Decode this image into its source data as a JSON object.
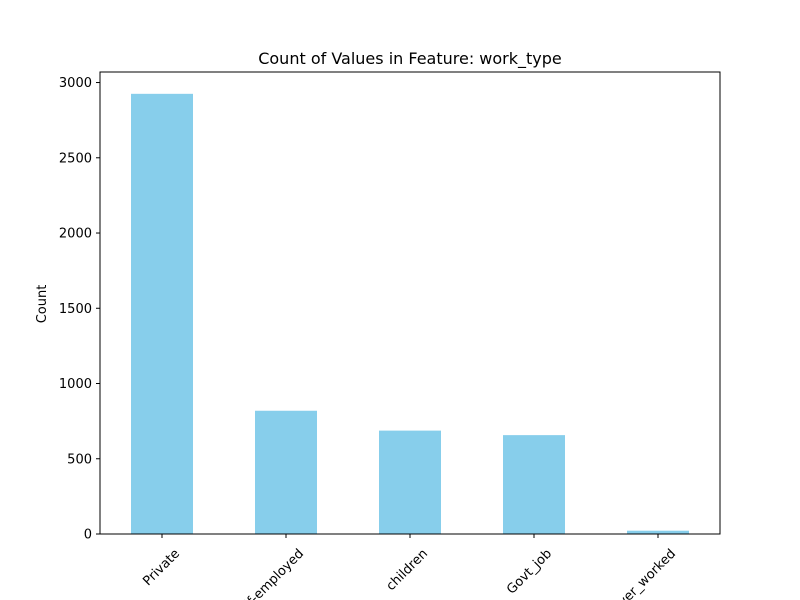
{
  "chart_data": {
    "type": "bar",
    "title": "Count of Values in Feature: work_type",
    "xlabel": "",
    "ylabel": "Count",
    "categories": [
      "Private",
      "Self-employed",
      "children",
      "Govt_job",
      "Never_worked"
    ],
    "values": [
      2925,
      819,
      687,
      657,
      22
    ],
    "ylim": [
      0,
      3070
    ],
    "yticks": [
      0,
      500,
      1000,
      1500,
      2000,
      2500,
      3000
    ],
    "bar_color": "#87ceeb",
    "grid": false,
    "legend": "none"
  }
}
